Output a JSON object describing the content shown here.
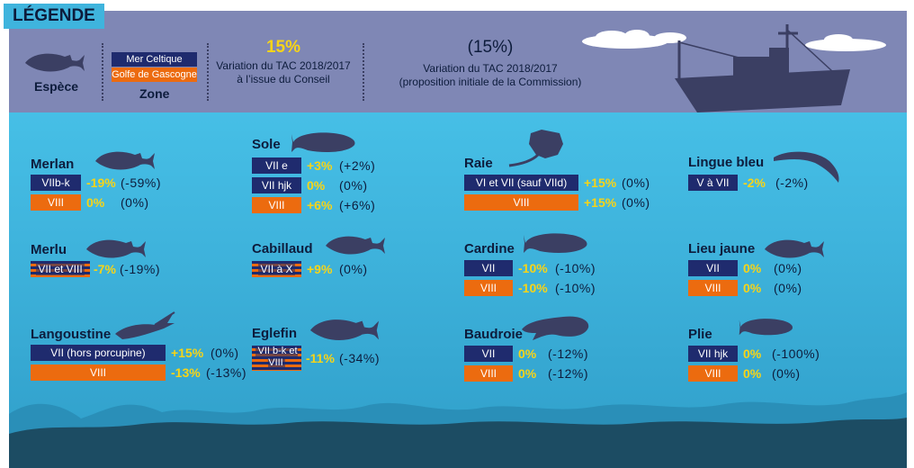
{
  "legend": {
    "title": "LÉGENDE",
    "species_label": "Espèce",
    "zone_label": "Zone",
    "zone_celtic": "Mer Celtique",
    "zone_gascogne": "Golfe de Gascogne",
    "var_example": "15%",
    "var_caption_1": "Variation du TAC 2018/2017",
    "var_caption_2": "à l’issue du Conseil",
    "prop_example": "(15%)",
    "prop_caption_1": "Variation du TAC 2018/2017",
    "prop_caption_2": "(proposition initiale de la Commission)"
  },
  "colors": {
    "celtic": "#1f2b6e",
    "gascogne": "#ec6b0f",
    "variation": "#f7d417",
    "sea_top": "#46bfe6",
    "sea_bottom": "#2f9ec9",
    "legend_band": "#7f87b5",
    "silhouette": "#3b3f63"
  },
  "species": {
    "merlan": {
      "name": "Merlan",
      "icon": "whiting-icon",
      "rows": [
        {
          "zone": "VIIb-k",
          "variation": "-19%",
          "proposal": "(-59%)"
        },
        {
          "zone": "VIII",
          "variation": "0%",
          "proposal": "(0%)"
        }
      ]
    },
    "sole": {
      "name": "Sole",
      "icon": "sole-icon",
      "rows": [
        {
          "zone": "VII e",
          "variation": "+3%",
          "proposal": "(+2%)"
        },
        {
          "zone": "VII hjk",
          "variation": "0%",
          "proposal": "(0%)"
        },
        {
          "zone": "VIII",
          "variation": "+6%",
          "proposal": "(+6%)"
        }
      ]
    },
    "raie": {
      "name": "Raie",
      "icon": "ray-icon",
      "rows": [
        {
          "zone": "VI et VII (sauf VIId)",
          "variation": "+15%",
          "proposal": "(0%)"
        },
        {
          "zone": "VIII",
          "variation": "+15%",
          "proposal": "(0%)"
        }
      ]
    },
    "lingue": {
      "name": "Lingue bleu",
      "icon": "blue-ling-icon",
      "rows": [
        {
          "zone": "V à VII",
          "variation": "-2%",
          "proposal": "(-2%)"
        }
      ]
    },
    "merlu": {
      "name": "Merlu",
      "icon": "hake-icon",
      "rows": [
        {
          "zone": "VII et VIII",
          "variation": "-7%",
          "proposal": "(-19%)"
        }
      ]
    },
    "cabillaud": {
      "name": "Cabillaud",
      "icon": "cod-icon",
      "rows": [
        {
          "zone": "VII à X",
          "variation": "+9%",
          "proposal": "(0%)"
        }
      ]
    },
    "cardine": {
      "name": "Cardine",
      "icon": "megrim-icon",
      "rows": [
        {
          "zone": "VII",
          "variation": "-10%",
          "proposal": "(-10%)"
        },
        {
          "zone": "VIII",
          "variation": "-10%",
          "proposal": "(-10%)"
        }
      ]
    },
    "lieu": {
      "name": "Lieu jaune",
      "icon": "pollack-icon",
      "rows": [
        {
          "zone": "VII",
          "variation": "0%",
          "proposal": "(0%)"
        },
        {
          "zone": "VIII",
          "variation": "0%",
          "proposal": "(0%)"
        }
      ]
    },
    "langoustine": {
      "name": "Langoustine",
      "icon": "langoustine-icon",
      "rows": [
        {
          "zone": "VII (hors porcupine)",
          "variation": "+15%",
          "proposal": "(0%)"
        },
        {
          "zone": "VIII",
          "variation": "-13%",
          "proposal": "(-13%)"
        }
      ]
    },
    "eglefin": {
      "name": "Eglefin",
      "icon": "haddock-icon",
      "rows": [
        {
          "zone": "VII b-k et VIII",
          "variation": "-11%",
          "proposal": "(-34%)"
        }
      ]
    },
    "baudroie": {
      "name": "Baudroie",
      "icon": "monkfish-icon",
      "rows": [
        {
          "zone": "VII",
          "variation": "0%",
          "proposal": "(-12%)"
        },
        {
          "zone": "VIII",
          "variation": "0%",
          "proposal": "(-12%)"
        }
      ]
    },
    "plie": {
      "name": "Plie",
      "icon": "plaice-icon",
      "rows": [
        {
          "zone": "VII hjk",
          "variation": "0%",
          "proposal": "(-100%)"
        },
        {
          "zone": "VIII",
          "variation": "0%",
          "proposal": "(0%)"
        }
      ]
    }
  }
}
